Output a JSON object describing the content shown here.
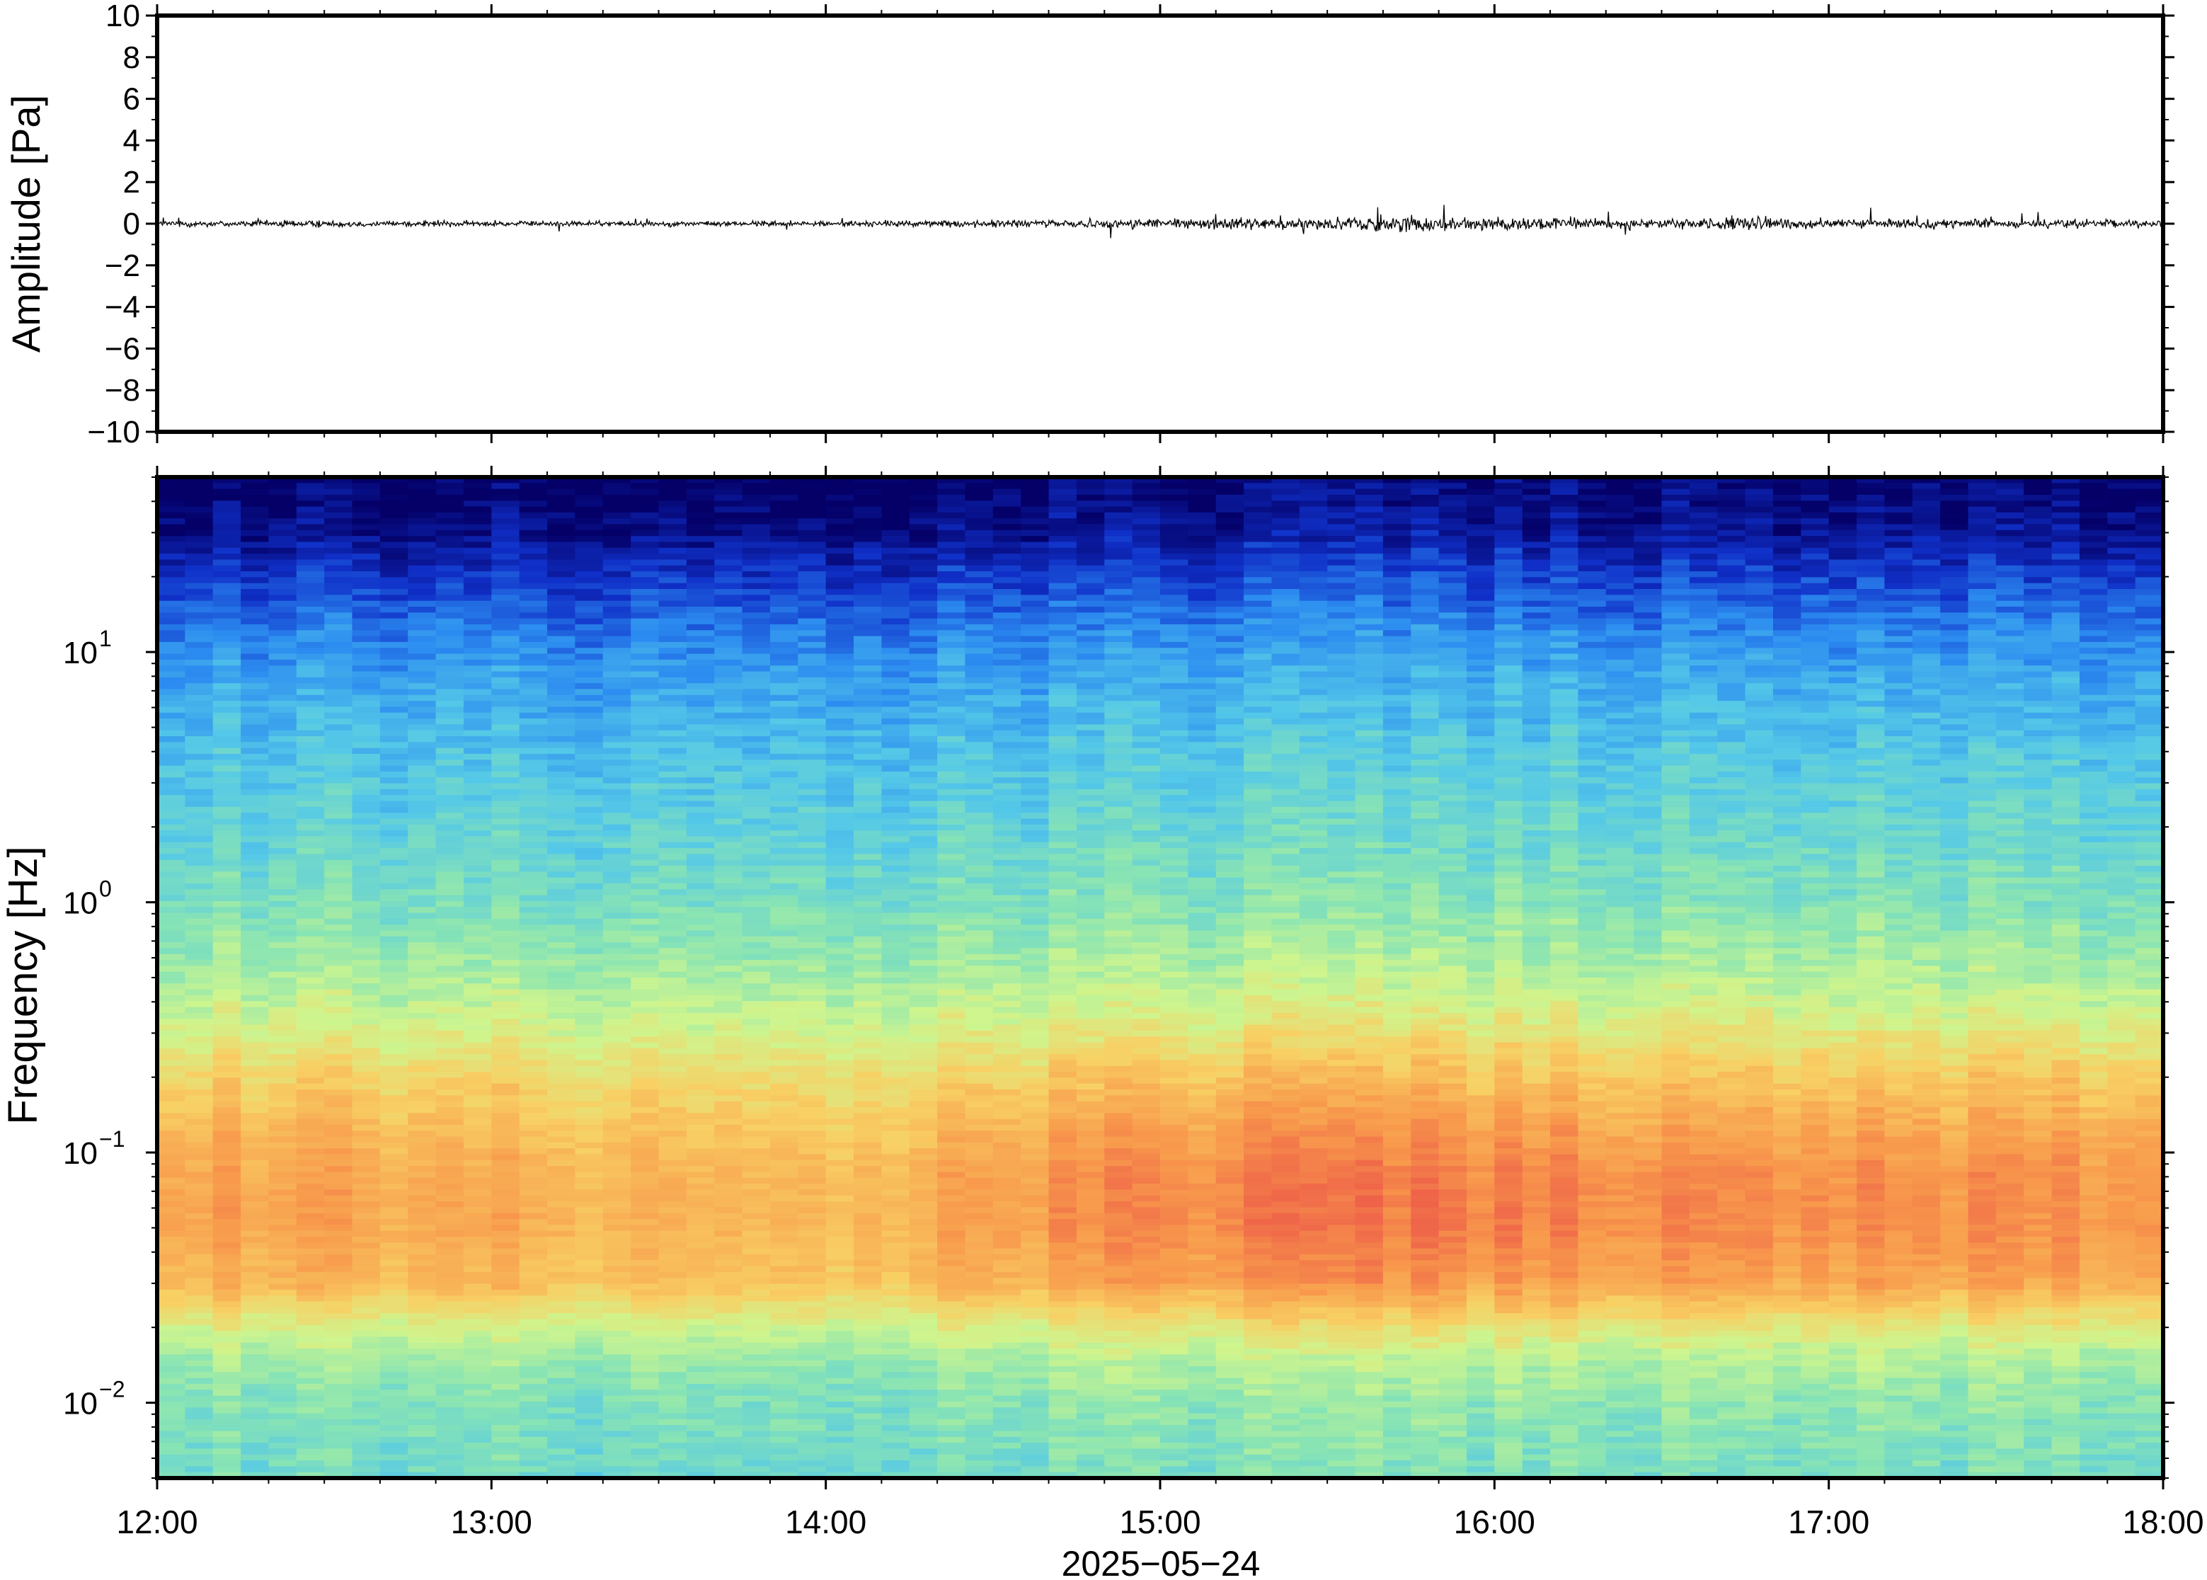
{
  "chart_data": [
    {
      "type": "line",
      "ylabel": "Amplitude [Pa]",
      "ylim": [
        -10,
        10
      ],
      "yticks": [
        10,
        8,
        6,
        4,
        2,
        0,
        -2,
        -4,
        -6,
        -8,
        -10
      ],
      "ytick_labels": [
        "10",
        "8",
        "6",
        "4",
        "2",
        "0",
        "−2",
        "−4",
        "−6",
        "−8",
        "−10"
      ],
      "xlim": [
        "12:00",
        "18:00"
      ],
      "series": [
        {
          "color": "#000000",
          "envelope_hours": [
            12.0,
            12.5,
            13.0,
            13.5,
            14.0,
            14.5,
            15.0,
            15.5,
            15.65,
            16.0,
            16.5,
            16.75,
            17.0,
            17.5,
            18.0
          ],
          "envelope_pa": [
            0.4,
            0.4,
            0.35,
            0.3,
            0.35,
            0.45,
            0.65,
            0.7,
            1.1,
            0.8,
            0.6,
            0.9,
            0.55,
            0.55,
            0.5
          ]
        }
      ],
      "grid": false
    },
    {
      "type": "heatmap",
      "ylabel": "Frequency [Hz]",
      "yscale": "log",
      "ylim": [
        0.005,
        50
      ],
      "yticks": [
        0.01,
        0.1,
        1,
        10
      ],
      "ytick_labels": [
        {
          "base": "10",
          "exp": "−2"
        },
        {
          "base": "10",
          "exp": "−1"
        },
        {
          "base": "10",
          "exp": "0"
        },
        {
          "base": "10",
          "exp": "1"
        }
      ],
      "xlim": [
        "12:00",
        "18:00"
      ],
      "xticks": [
        "12:00",
        "13:00",
        "14:00",
        "15:00",
        "16:00",
        "17:00",
        "18:00"
      ],
      "xlabel": "2025−05−24",
      "colormap": [
        "#040068",
        "#1030c8",
        "#2c8cf0",
        "#54c8e8",
        "#88e4b4",
        "#cef58e",
        "#f8d064",
        "#f89a4c",
        "#ec5448"
      ],
      "profile_freq_hz": [
        50,
        30,
        20,
        12,
        8,
        4,
        2,
        1,
        0.5,
        0.3,
        0.2,
        0.12,
        0.08,
        0.05,
        0.03,
        0.02,
        0.015,
        0.01,
        0.005
      ],
      "profile_level": [
        0.0,
        0.05,
        0.14,
        0.24,
        0.3,
        0.37,
        0.42,
        0.48,
        0.57,
        0.66,
        0.75,
        0.82,
        0.86,
        0.86,
        0.82,
        0.66,
        0.56,
        0.5,
        0.46
      ],
      "activity_hours": [
        12.0,
        13.0,
        14.0,
        14.5,
        15.0,
        15.5,
        16.0,
        16.5,
        17.0,
        17.5,
        18.0
      ],
      "activity_offset": [
        0.0,
        -0.02,
        -0.05,
        0.0,
        0.03,
        0.05,
        0.04,
        0.03,
        0.02,
        0.02,
        0.02
      ]
    }
  ]
}
